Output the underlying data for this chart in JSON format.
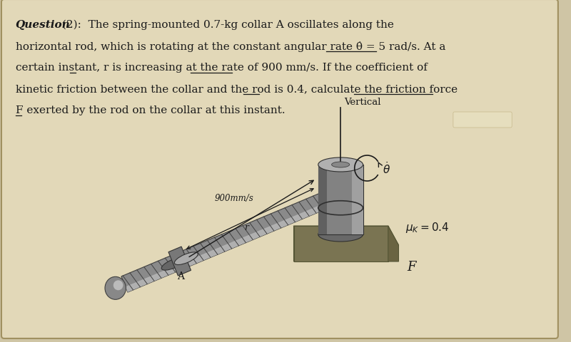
{
  "bg_color": "#cfc5a5",
  "page_bg": "#e2d8b8",
  "text_color": "#1a1a1a",
  "line1_bold": "Question",
  "line1_rest": " (2):  The spring-mounted 0.7-kg collar A oscillates along the",
  "line2": "horizontal rod, which is rotating at the constant angular rate θ̇ = 5 rad/s. At a",
  "line3": "certain instant, r is increasing at the rate of 900 mm/s. If the coefficient of",
  "line4": "kinetic friction between the collar and the rod is 0.4, calculate the friction force",
  "line5": "F exerted by the rod on the collar at this instant.",
  "label_vertical": "Vertical",
  "label_900": "900mm/s",
  "label_r": "r",
  "label_theta": "θ̇",
  "label_mu": "μK=0.4",
  "label_F": "F",
  "label_A": "A"
}
